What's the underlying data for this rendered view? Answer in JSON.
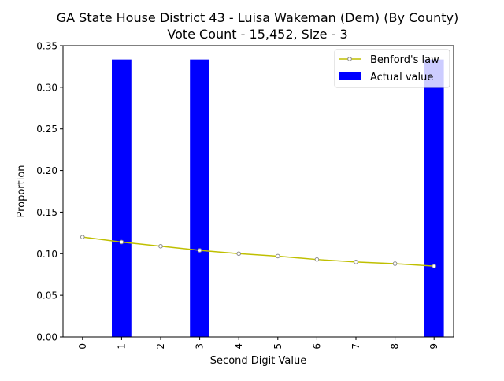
{
  "chart_data": {
    "type": "bar",
    "title": "GA State House District 43 - Luisa Wakeman (Dem) (By County)",
    "subtitle": "Vote Count - 15,452, Size - 3",
    "xlabel": "Second Digit Value",
    "ylabel": "Proportion",
    "categories": [
      "0",
      "1",
      "2",
      "3",
      "4",
      "5",
      "6",
      "7",
      "8",
      "9"
    ],
    "x": [
      0,
      1,
      2,
      3,
      4,
      5,
      6,
      7,
      8,
      9
    ],
    "ylim": [
      0,
      0.35
    ],
    "yticks": [
      0.0,
      0.05,
      0.1,
      0.15,
      0.2,
      0.25,
      0.3,
      0.35
    ],
    "ytick_labels": [
      "0.00",
      "0.05",
      "0.10",
      "0.15",
      "0.20",
      "0.25",
      "0.30",
      "0.35"
    ],
    "grid": false,
    "legend_position": "top-right",
    "series": [
      {
        "name": "Benford's law",
        "type": "line",
        "color": "#bfbf00",
        "marker_color": "#8c8c8c",
        "values": [
          0.12,
          0.114,
          0.109,
          0.104,
          0.1,
          0.097,
          0.093,
          0.09,
          0.088,
          0.085
        ]
      },
      {
        "name": "Actual value",
        "type": "bar",
        "color": "#0000ff",
        "values": [
          0,
          0.3333,
          0,
          0.3333,
          0,
          0,
          0,
          0,
          0,
          0.3333
        ]
      }
    ]
  }
}
